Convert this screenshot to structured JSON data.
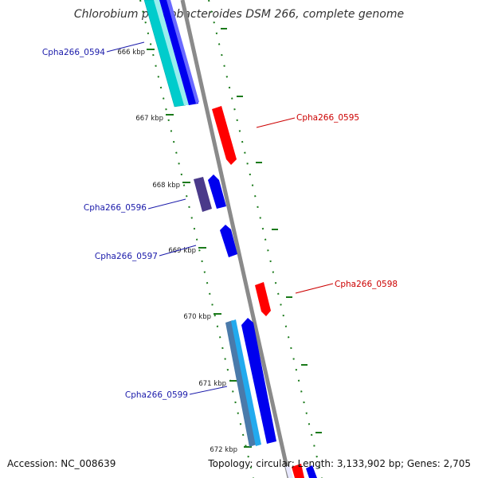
{
  "title": "Chlorobium phaeobacteroides DSM 266, complete genome",
  "footer": {
    "accession": "Accession: NC_008639",
    "info": "Topology: circular; Length: 3,133,902 bp; Genes: 2,705"
  },
  "colors": {
    "backbone": "#8a8a8a",
    "tick": "#1a7a1a",
    "forward_label": "#1a1aaa",
    "reverse_label": "#cc0000",
    "forward_gene": "#0000ee",
    "reverse_gene": "#ff0000",
    "cyan_gene": "#00cccc",
    "light_blue_gene": "#22aaee",
    "steel_gene": "#4a7aaa",
    "dark_purple_gene": "#4a3a8a"
  },
  "ticks": [
    {
      "label": "666 kbp"
    },
    {
      "label": "667 kbp"
    },
    {
      "label": "668 kbp"
    },
    {
      "label": "669 kbp"
    },
    {
      "label": "670 kbp"
    },
    {
      "label": "671 kbp"
    },
    {
      "label": "672 kbp"
    }
  ],
  "gene_labels": [
    {
      "label": "Cpha266_0594",
      "strand": "forward"
    },
    {
      "label": "Cpha266_0595",
      "strand": "reverse"
    },
    {
      "label": "Cpha266_0596",
      "strand": "forward"
    },
    {
      "label": "Cpha266_0597",
      "strand": "forward"
    },
    {
      "label": "Cpha266_0598",
      "strand": "reverse"
    },
    {
      "label": "Cpha266_0599",
      "strand": "forward"
    }
  ]
}
